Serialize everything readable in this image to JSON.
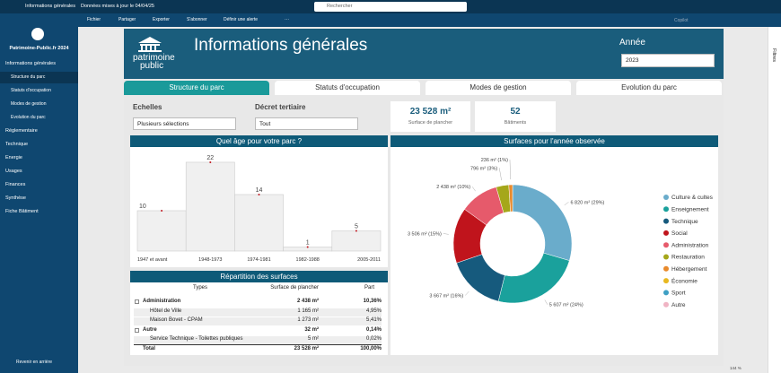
{
  "top_bar": {
    "report": "Informations générales",
    "updated": "Données mises à jour le 04/04/25",
    "search": "Rechercher"
  },
  "toolbar": {
    "items": [
      "Fichier",
      "Partager",
      "Exporter",
      "S'abonner",
      "Définir une alerte",
      "···"
    ],
    "copilot": "Copilot"
  },
  "nav": {
    "workspace": "Patrimoine-Public.fr 2024",
    "sections": [
      {
        "label": "Informations générales",
        "pages": [
          "Structure du parc",
          "Statuts d'occupation",
          "Modes de gestion",
          "Evolution du parc"
        ]
      },
      {
        "label": "Réglementaire"
      },
      {
        "label": "Technique"
      },
      {
        "label": "Energie"
      },
      {
        "label": "Usages"
      },
      {
        "label": "Finances"
      },
      {
        "label": "Synthèse"
      },
      {
        "label": "Fiche Bâtiment"
      }
    ],
    "active_page": 0,
    "back": "Revenir en arrière"
  },
  "header": {
    "logo": [
      "patrimoine",
      "public"
    ],
    "title": "Informations générales",
    "year_label": "Année",
    "year": "2023"
  },
  "tabs": {
    "items": [
      "Structure du parc",
      "Statuts d'occupation",
      "Modes de gestion",
      "Evolution du parc"
    ],
    "active": 0
  },
  "filters": [
    {
      "label": "Echelles",
      "value": "Plusieurs sélections"
    },
    {
      "label": "Décret tertiaire",
      "value": "Tout"
    }
  ],
  "cards": [
    {
      "value": "23 528 m²",
      "label": "Surface de plancher"
    },
    {
      "value": "52",
      "label": "Bâtiments"
    }
  ],
  "age_chart": {
    "type": "step",
    "title": "Quel âge pour votre parc ?",
    "categories": [
      "1947 et avant",
      "1948-1973",
      "1974-1981",
      "1982-1988",
      "2005-2011"
    ],
    "values": [
      10,
      22,
      14,
      1,
      5
    ],
    "color": "#c0141c"
  },
  "table": {
    "title": "Répartition des surfaces",
    "columns": [
      "Types",
      "Surface de plancher",
      "Part"
    ],
    "rows": [
      {
        "group": true,
        "cells": [
          "Administration",
          "2 438 m²",
          "10,36%"
        ]
      },
      {
        "cells": [
          "Hôtel de Ville",
          "1 165 m²",
          "4,95%"
        ]
      },
      {
        "cells": [
          "Maison Bovet - CPAM",
          "1 273 m²",
          "5,41%"
        ]
      },
      {
        "group": true,
        "cells": [
          "Autre",
          "32 m²",
          "0,14%"
        ]
      },
      {
        "cells": [
          "Service Technique - Toilettes publiques",
          "5 m²",
          "0,02%"
        ]
      }
    ],
    "total": [
      "Total",
      "23 528 m²",
      "100,00%"
    ]
  },
  "donut": {
    "type": "donut",
    "title": "Surfaces pour l'année observée",
    "values": [
      6820,
      5607,
      3667,
      3506,
      2438,
      796,
      236
    ],
    "value_labels": [
      "6 820 m² (29%)",
      "5 607 m² (24%)",
      "3 667 m² (16%)",
      "3 506 m² (15%)",
      "2 438 m² (10%)",
      "796 m² (3%)",
      "236 m² (1%)"
    ],
    "colors": [
      "#6aaccb",
      "#1aa19c",
      "#165a7d",
      "#c0141c",
      "#e65a6b",
      "#a5a71a",
      "#e98a2c"
    ],
    "legend": {
      "names": [
        "Culture & cultes",
        "Enseignement",
        "Technique",
        "Social",
        "Administration",
        "Restauration",
        "Hébergement",
        "Économie",
        "Sport",
        "Autre"
      ],
      "colors": [
        "#6aaccb",
        "#1aa19c",
        "#165a7d",
        "#c0141c",
        "#e65a6b",
        "#a5a71a",
        "#e98a2c",
        "#e8b820",
        "#3fa0c4",
        "#f0b4c4"
      ]
    }
  },
  "filters_pane": "Filtres",
  "zoom": "144 %"
}
